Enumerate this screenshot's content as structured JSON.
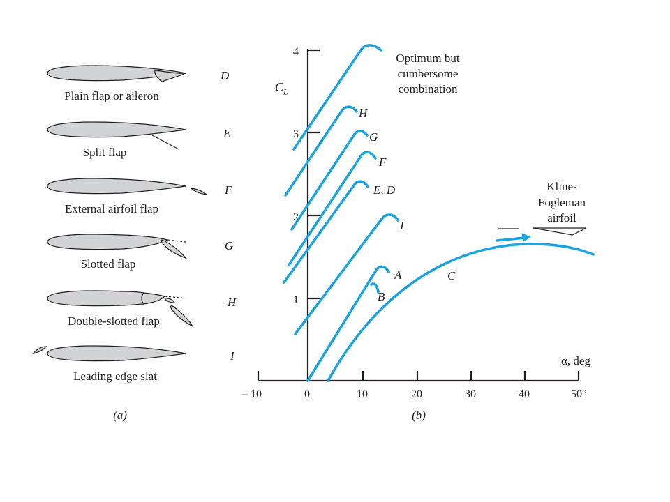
{
  "panel_a": {
    "configs": [
      {
        "name": "Plain flap or aileron",
        "letter": "D",
        "icon": "plain-flap"
      },
      {
        "name": "Split flap",
        "letter": "E",
        "icon": "split-flap"
      },
      {
        "name": "External airfoil flap",
        "letter": "F",
        "icon": "external-airfoil-flap"
      },
      {
        "name": "Slotted flap",
        "letter": "G",
        "icon": "slotted-flap"
      },
      {
        "name": "Double-slotted flap",
        "letter": "H",
        "icon": "double-slotted-flap"
      },
      {
        "name": "Leading edge slat",
        "letter": "I",
        "icon": "leading-edge-slat"
      }
    ],
    "caption": "(a)"
  },
  "panel_b": {
    "y_axis_label": "C",
    "y_axis_subscript": "L",
    "x_axis_label": "α, deg",
    "y_ticks": [
      "1",
      "2",
      "3",
      "4"
    ],
    "x_ticks": [
      "– 10",
      "0",
      "10",
      "20",
      "30",
      "40",
      "50°"
    ],
    "curve_labels": [
      "H",
      "G",
      "F",
      "E, D",
      "I",
      "A",
      "B",
      "C"
    ],
    "annotation_optimum": [
      "Optimum but",
      "cumbersome",
      "combination"
    ],
    "annotation_kline": [
      "Kline-",
      "Fogleman",
      "airfoil"
    ],
    "caption": "(b)",
    "curve_color": "#1aa3de"
  }
}
